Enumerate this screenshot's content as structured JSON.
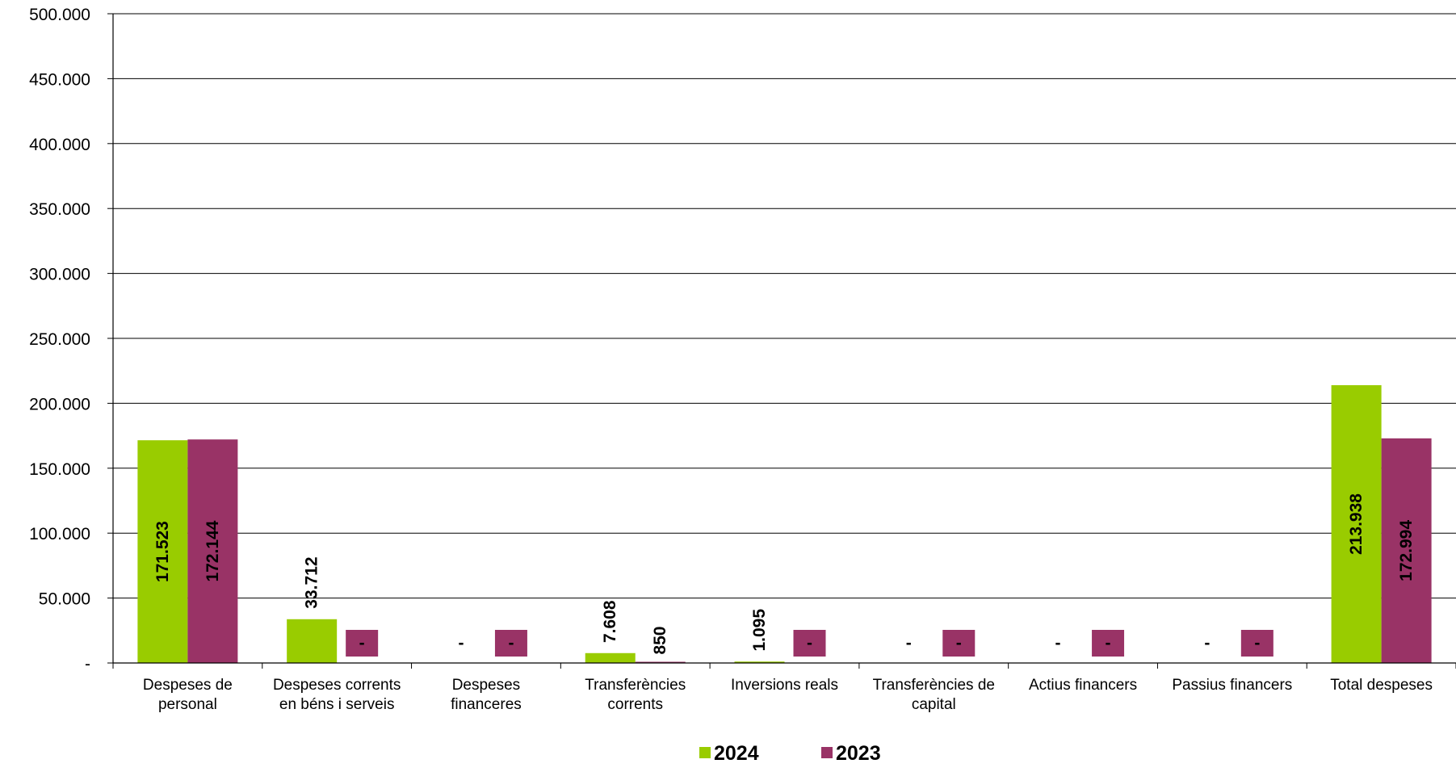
{
  "chart_data": {
    "type": "bar",
    "categories": [
      [
        "Despeses de",
        "personal"
      ],
      [
        "Despeses corrents",
        "en béns i serveis"
      ],
      [
        "Despeses",
        "financeres"
      ],
      [
        "Transferències",
        "corrents"
      ],
      [
        "Inversions reals"
      ],
      [
        "Transferències de",
        "capital"
      ],
      [
        "Actius financers"
      ],
      [
        "Passius financers"
      ],
      [
        "Total despeses"
      ]
    ],
    "series": [
      {
        "name": "2024",
        "color": "#99cc00",
        "values": [
          171523,
          33712,
          0,
          7608,
          1095,
          0,
          0,
          0,
          213938
        ],
        "labels": [
          "171.523",
          "33.712",
          "-",
          "7.608",
          "1.095",
          "-",
          "-",
          "-",
          "213.938"
        ]
      },
      {
        "name": "2023",
        "color": "#993366",
        "values": [
          172144,
          0,
          0,
          850,
          0,
          0,
          0,
          0,
          172994
        ],
        "labels": [
          "172.144",
          "-",
          "-",
          "850",
          "-",
          "-",
          "-",
          "-",
          "172.994"
        ]
      }
    ],
    "ylim": [
      0,
      500000
    ],
    "yticks": [
      {
        "value": 0,
        "label": "-"
      },
      {
        "value": 50000,
        "label": "50.000"
      },
      {
        "value": 100000,
        "label": "100.000"
      },
      {
        "value": 150000,
        "label": "150.000"
      },
      {
        "value": 200000,
        "label": "200.000"
      },
      {
        "value": 250000,
        "label": "250.000"
      },
      {
        "value": 300000,
        "label": "300.000"
      },
      {
        "value": 350000,
        "label": "350.000"
      },
      {
        "value": 400000,
        "label": "400.000"
      },
      {
        "value": 450000,
        "label": "450.000"
      },
      {
        "value": 500000,
        "label": "500.000"
      }
    ],
    "grid": true,
    "legend": "bottom-center",
    "title": "",
    "xlabel": "",
    "ylabel": ""
  }
}
